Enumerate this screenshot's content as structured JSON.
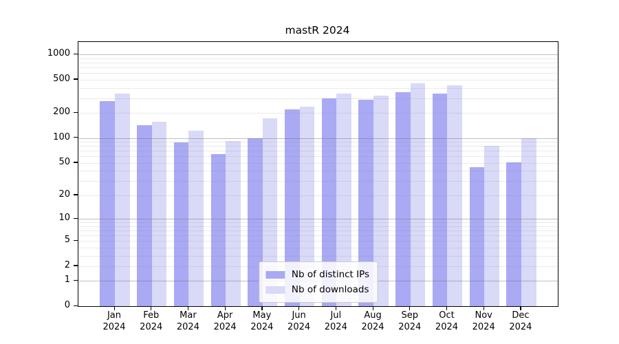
{
  "title": "mastR 2024",
  "chart_data": {
    "type": "bar",
    "title": "mastR 2024",
    "yscale": "log1p",
    "grid": true,
    "legend_position": "lower center",
    "categories": [
      "Jan",
      "Feb",
      "Mar",
      "Apr",
      "May",
      "Jun",
      "Jul",
      "Aug",
      "Sep",
      "Oct",
      "Nov",
      "Dec"
    ],
    "category_year": "2024",
    "yticks": [
      0,
      1,
      2,
      5,
      10,
      20,
      50,
      100,
      200,
      500,
      1000
    ],
    "ylim": [
      0,
      1300
    ],
    "series": [
      {
        "name": "Nb of distinct IPs",
        "color": "#a9a9f4",
        "values": [
          280,
          144,
          88,
          64,
          100,
          223,
          302,
          287,
          358,
          340,
          44,
          51
        ]
      },
      {
        "name": "Nb of downloads",
        "color": "#d9d9f8",
        "values": [
          340,
          156,
          122,
          92,
          172,
          240,
          340,
          322,
          452,
          430,
          80,
          100
        ]
      }
    ]
  },
  "colors": {
    "major_grid": "#b0b0b0",
    "minor_grid": "#e8e8e8",
    "axis": "#000000",
    "legend_border": "#cccccc"
  }
}
